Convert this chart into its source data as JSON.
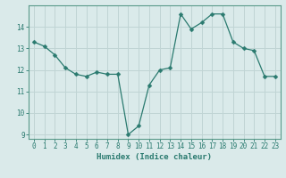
{
  "x": [
    0,
    1,
    2,
    3,
    4,
    5,
    6,
    7,
    8,
    9,
    10,
    11,
    12,
    13,
    14,
    15,
    16,
    17,
    18,
    19,
    20,
    21,
    22,
    23
  ],
  "y": [
    13.3,
    13.1,
    12.7,
    12.1,
    11.8,
    11.7,
    11.9,
    11.8,
    11.8,
    9.0,
    9.4,
    11.3,
    12.0,
    12.1,
    14.6,
    13.9,
    14.2,
    14.6,
    14.6,
    13.3,
    13.0,
    12.9,
    11.7,
    11.7
  ],
  "line_color": "#2a7a6f",
  "marker": "D",
  "marker_size": 2.5,
  "bg_color": "#daeaea",
  "grid_color": "#c0d4d4",
  "xlabel": "Humidex (Indice chaleur)",
  "xlim": [
    -0.5,
    23.5
  ],
  "ylim": [
    8.8,
    15.0
  ],
  "yticks": [
    9,
    10,
    11,
    12,
    13,
    14
  ],
  "xticks": [
    0,
    1,
    2,
    3,
    4,
    5,
    6,
    7,
    8,
    9,
    10,
    11,
    12,
    13,
    14,
    15,
    16,
    17,
    18,
    19,
    20,
    21,
    22,
    23
  ],
  "tick_fontsize": 5.5,
  "xlabel_fontsize": 6.5,
  "spine_color": "#5a9a8a"
}
